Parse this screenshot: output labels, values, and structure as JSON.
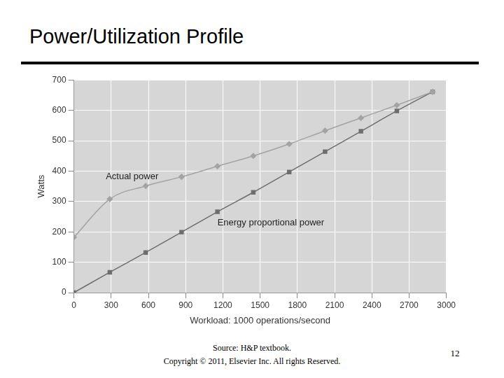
{
  "slide": {
    "title": "Power/Utilization Profile",
    "source": "Source: H&P textbook.",
    "copyright": "Copyright © 2011, Elsevier Inc. All rights Reserved.",
    "page_number": 12
  },
  "chart_data": {
    "type": "line",
    "x_label": "Workload: 1000 operations/second",
    "y_label": "Watts",
    "x": [
      0,
      289,
      578,
      867,
      1156,
      1445,
      1734,
      2023,
      2312,
      2601,
      2889
    ],
    "series": [
      {
        "name": "Actual power",
        "color": "#a3a3a3",
        "marker": "diamond",
        "line_style": "solid",
        "values": [
          182,
          308,
          351,
          381,
          416,
          450,
          489,
          533,
          575,
          617,
          661
        ]
      },
      {
        "name": "Energy proportional power",
        "color": "#6e6e6e",
        "marker": "square",
        "line_style": "solid",
        "values": [
          0,
          67,
          132,
          199,
          266,
          330,
          397,
          464,
          531,
          598,
          661
        ]
      }
    ],
    "xlim": [
      0,
      3000
    ],
    "xticks": [
      0,
      300,
      600,
      900,
      1200,
      1500,
      1800,
      2100,
      2400,
      2700,
      3000
    ],
    "ylim": [
      0,
      700
    ],
    "yticks": [
      0,
      100,
      200,
      300,
      400,
      500,
      600,
      700
    ],
    "grid": true
  }
}
